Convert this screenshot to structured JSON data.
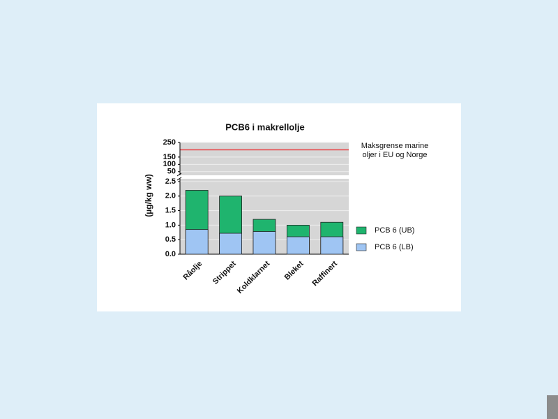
{
  "chart_data": {
    "type": "bar",
    "title": "PCB6 i makrellolje",
    "y_label": "(µg/kg ww)",
    "categories": [
      "Råolje",
      "Strippet",
      "Koldklarnet",
      "Bleket",
      "Raffinert"
    ],
    "series": [
      {
        "name": "PCB 6 (UB)",
        "color": "#1fb46e",
        "values": [
          2.2,
          2.0,
          1.2,
          1.0,
          1.1
        ]
      },
      {
        "name": "PCB 6 (LB)",
        "color": "#9fc5f3",
        "values": [
          0.85,
          0.72,
          0.78,
          0.6,
          0.6
        ]
      }
    ],
    "ylim": [
      0,
      2.5
    ],
    "yticks": [
      {
        "value": 0,
        "label": "0.0"
      },
      0.5,
      {
        "value": 1,
        "label": "1.0"
      },
      1.5,
      {
        "value": 2,
        "label": "2.0"
      },
      2.5
    ],
    "upper_axis": {
      "ylim": [
        25,
        250
      ],
      "yticks": [
        50,
        100,
        150,
        250
      ]
    },
    "reference_line": {
      "value": 200,
      "color": "#e8484a",
      "label": [
        "Maksgrense marine",
        "oljer i EU og Norge"
      ]
    },
    "grid": true,
    "legend": "right"
  }
}
